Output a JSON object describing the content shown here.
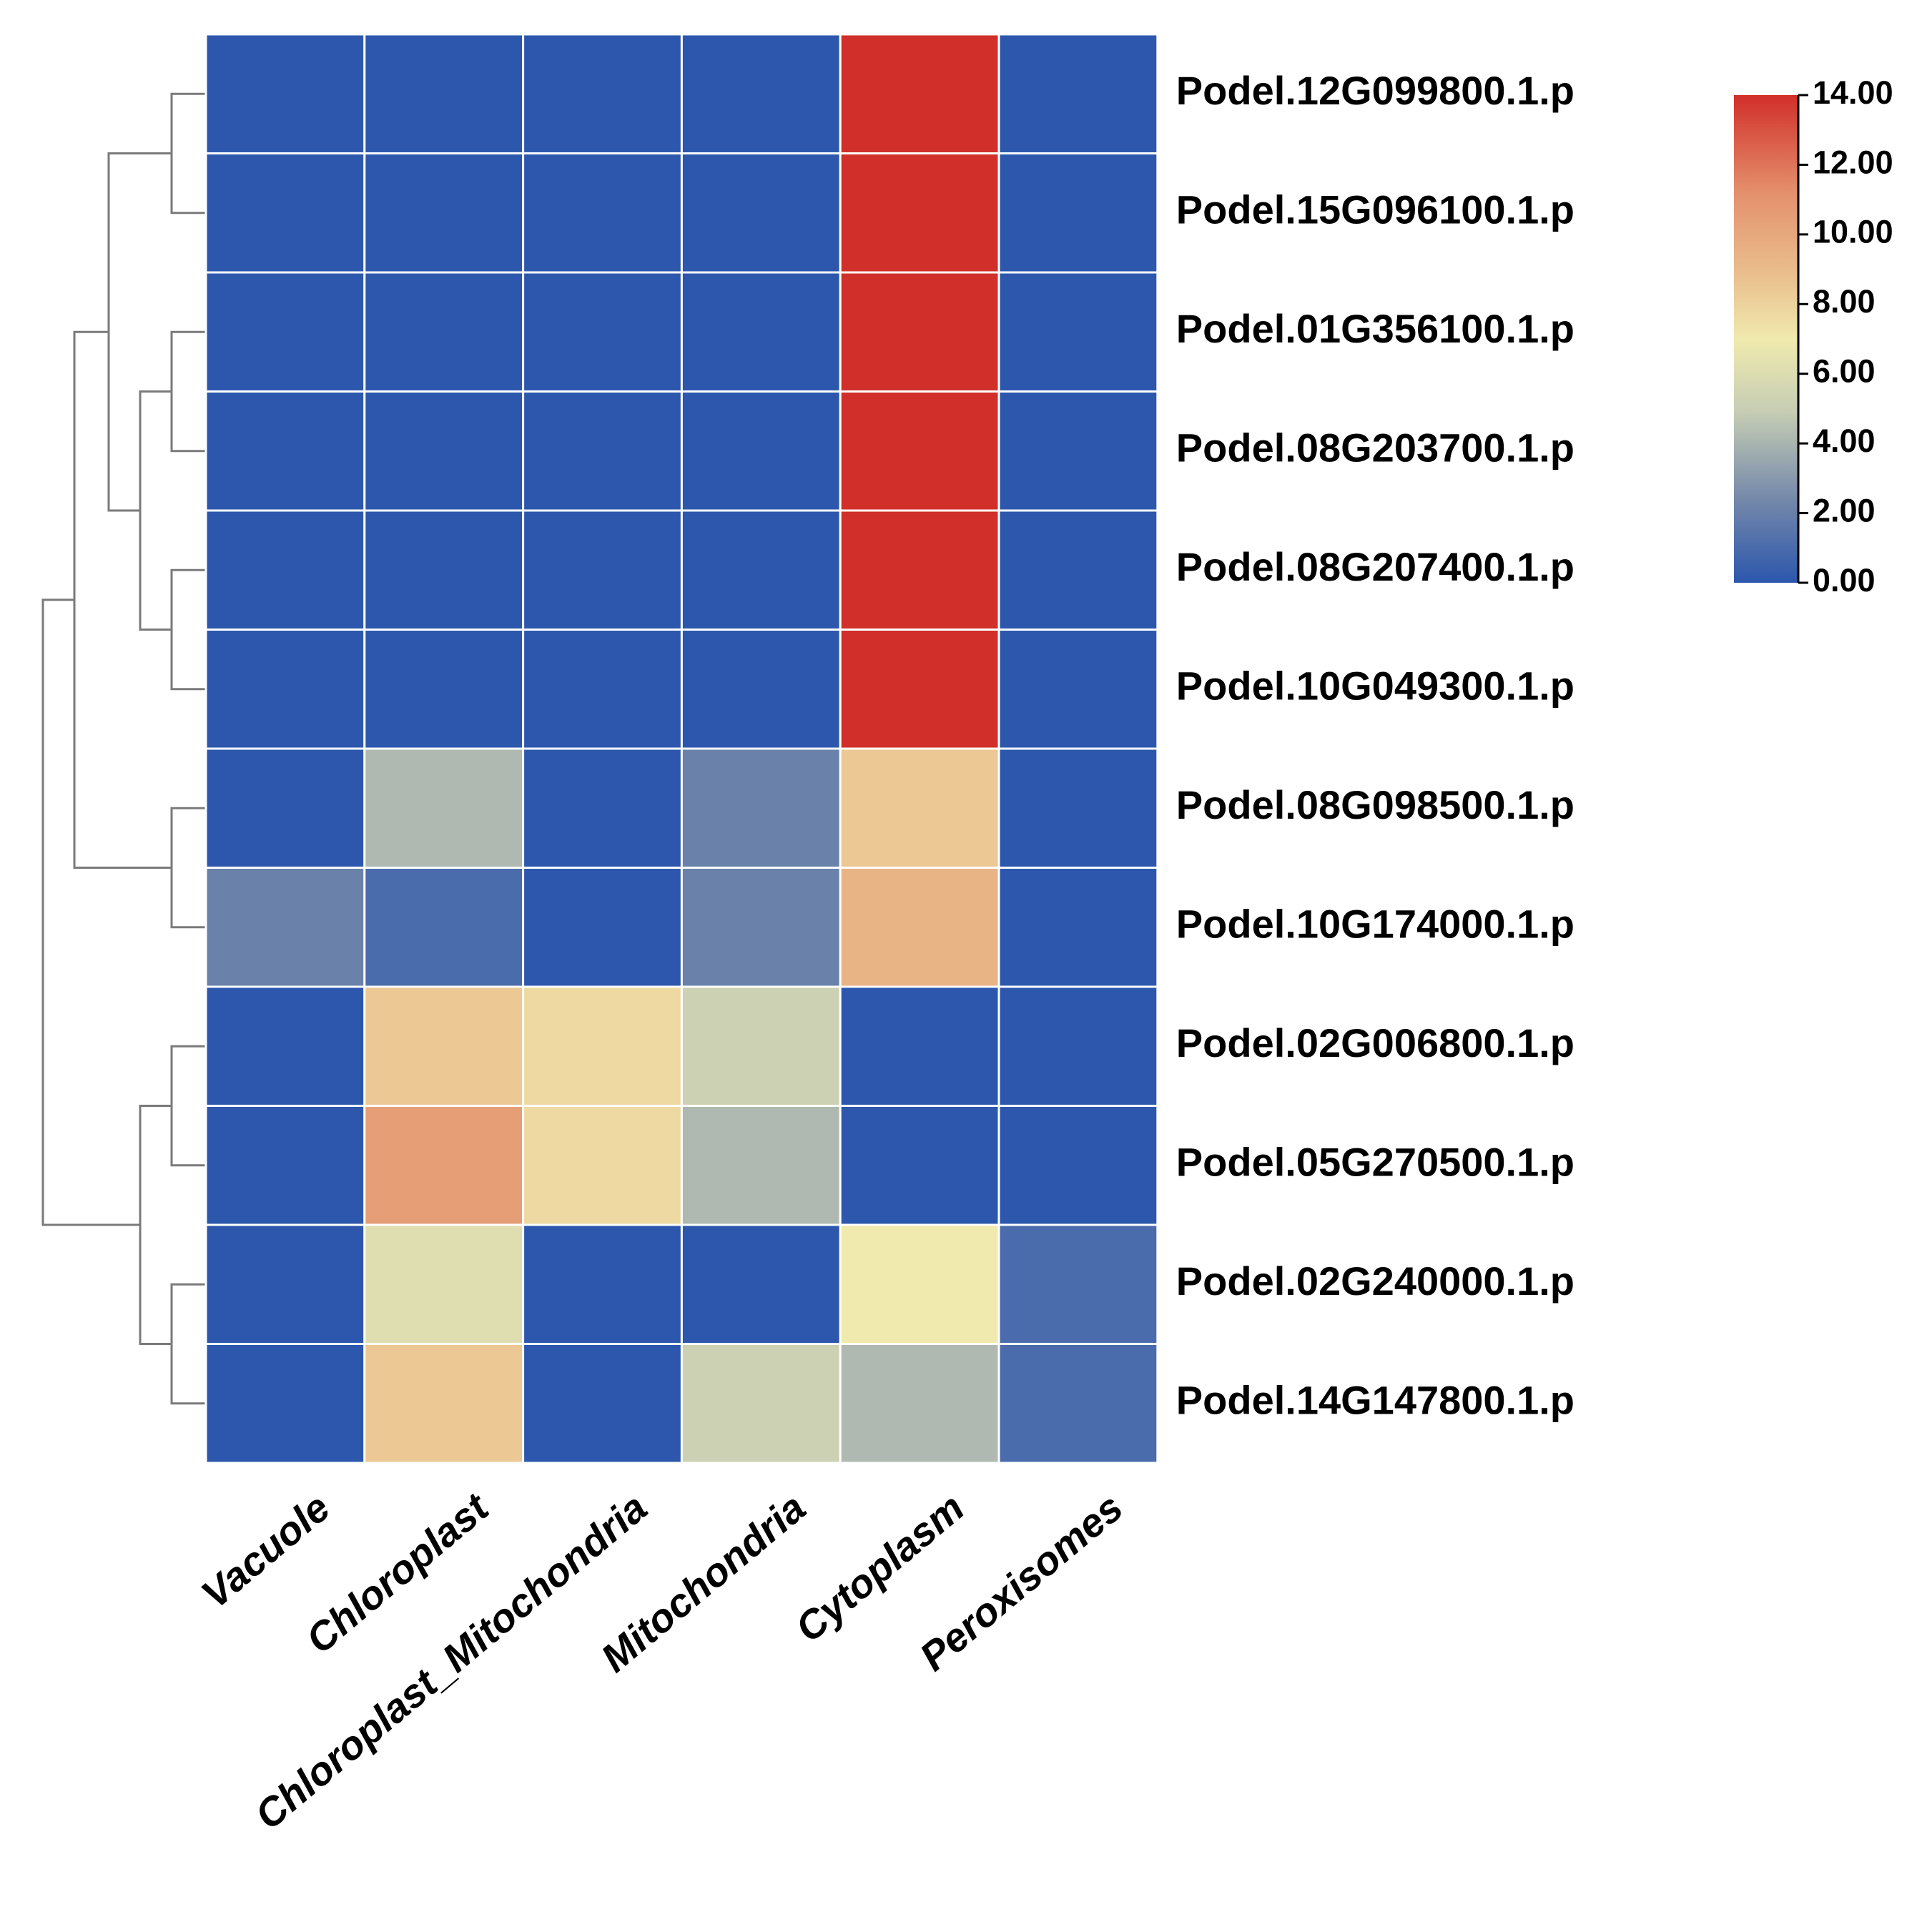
{
  "chart_data": {
    "type": "heatmap",
    "title": "",
    "rows": [
      "Podel.12G099800.1.p",
      "Podel.15G096100.1.p",
      "Podel.01G356100.1.p",
      "Podel.08G203700.1.p",
      "Podel.08G207400.1.p",
      "Podel.10G049300.1.p",
      "Podel.08G098500.1.p",
      "Podel.10G174000.1.p",
      "Podel.02G006800.1.p",
      "Podel.05G270500.1.p",
      "Podel.02G240000.1.p",
      "Podel.14G147800.1.p"
    ],
    "columns": [
      "Vacuole",
      "Chloroplast",
      "Chloroplast_Mitochondria",
      "Mitochondria",
      "Cytoplasm",
      "Peroxisomes"
    ],
    "values": [
      [
        0,
        0,
        0,
        0,
        14,
        0
      ],
      [
        0,
        0,
        0,
        0,
        14,
        0
      ],
      [
        0,
        0,
        0,
        0,
        14,
        0
      ],
      [
        0,
        0,
        0,
        0,
        14,
        0
      ],
      [
        0,
        0,
        0,
        0,
        14,
        0
      ],
      [
        0,
        0,
        0,
        0,
        14,
        0
      ],
      [
        0,
        4,
        0,
        2,
        9,
        0
      ],
      [
        2,
        1,
        0,
        2,
        10,
        0
      ],
      [
        0,
        9,
        8,
        5,
        0,
        0
      ],
      [
        0,
        11,
        8,
        4,
        0,
        0
      ],
      [
        0,
        6,
        0,
        0,
        7,
        1
      ],
      [
        0,
        9,
        0,
        5,
        4,
        1
      ]
    ],
    "colorbar": {
      "min": 0,
      "max": 14,
      "ticks": [
        "14.00",
        "12.00",
        "10.00",
        "8.00",
        "6.00",
        "4.00",
        "2.00",
        "0.00"
      ],
      "colors": [
        "#2c57ad",
        "#7488aa",
        "#c6cdb4",
        "#f0eaae",
        "#eac290",
        "#e4906c",
        "#d12f2a"
      ]
    },
    "row_dendrogram": {
      "merges": [
        [
          0,
          1
        ],
        [
          2,
          3
        ],
        [
          4,
          5
        ],
        [
          "c1",
          "c2"
        ],
        [
          "c0",
          "c3"
        ],
        [
          6,
          7
        ],
        [
          "c4",
          "c5"
        ],
        [
          8,
          9
        ],
        [
          10,
          11
        ],
        [
          "c7",
          "c8"
        ],
        [
          "c6",
          "c9"
        ]
      ]
    },
    "col_dendrogram": "none",
    "legend_position": "top-right"
  }
}
